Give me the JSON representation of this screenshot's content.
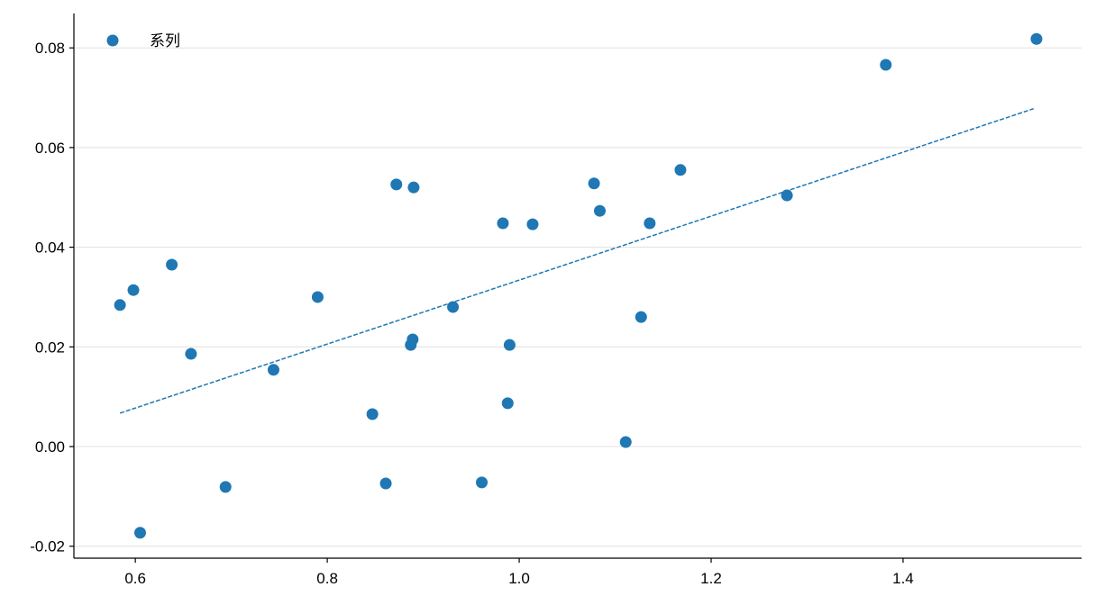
{
  "chart_data": {
    "type": "scatter",
    "series": [
      {
        "name": "系列",
        "color": "#1f77b4",
        "x": [
          0.584,
          0.598,
          0.605,
          0.638,
          0.658,
          0.694,
          0.744,
          0.79,
          0.847,
          0.861,
          0.872,
          0.887,
          0.889,
          0.89,
          0.931,
          0.961,
          0.983,
          0.988,
          0.99,
          1.014,
          1.078,
          1.084,
          1.111,
          1.127,
          1.136,
          1.168,
          1.279,
          1.382,
          1.539
        ],
        "values": [
          0.0284,
          0.0314,
          -0.0173,
          0.0365,
          0.0186,
          -0.0081,
          0.0154,
          0.03,
          0.0065,
          -0.0074,
          0.0526,
          0.0204,
          0.0215,
          0.052,
          0.028,
          -0.0072,
          0.0448,
          0.0087,
          0.0204,
          0.0446,
          0.0528,
          0.0473,
          0.0009,
          0.026,
          0.0448,
          0.0555,
          0.0504,
          0.0766,
          0.0818
        ]
      }
    ],
    "trendline": {
      "x": [
        0.584,
        1.536
      ],
      "y": [
        0.0067,
        0.0678
      ],
      "color": "#1f77b4"
    },
    "xlim": [
      0.536,
      1.586
    ],
    "ylim": [
      -0.0224,
      0.0869
    ],
    "xticks": [
      0.6,
      0.8,
      {
        "value": 1.0,
        "label": "1.0"
      },
      1.2,
      1.4
    ],
    "yticks": [
      -0.02,
      {
        "value": 0,
        "label": "0.00"
      },
      0.02,
      0.04,
      0.06,
      0.08
    ],
    "grid": "y",
    "legend": "upper left"
  }
}
